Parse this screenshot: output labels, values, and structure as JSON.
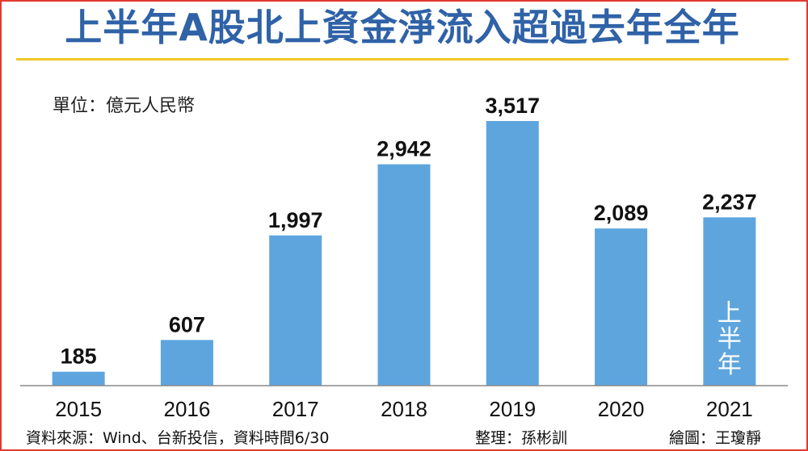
{
  "title": "上半年A股北上資金淨流入超過去年全年",
  "unit_label": "單位：億元人民幣",
  "footer": {
    "source": "資料來源：Wind、台新投信，資料時間6/30",
    "editor": "整理：孫彬訓",
    "artist": "繪圖：王瓊靜"
  },
  "colors": {
    "title": "#2f62a7",
    "bar": "#5ea5de",
    "rule": "#f0c82a",
    "border": "#e03a2e"
  },
  "chart_data": {
    "type": "bar",
    "categories": [
      "2015",
      "2016",
      "2017",
      "2018",
      "2019",
      "2020",
      "2021"
    ],
    "values": [
      185,
      607,
      1997,
      2942,
      3517,
      2089,
      2237
    ],
    "value_labels": [
      "185",
      "607",
      "1,997",
      "2,942",
      "3,517",
      "2,089",
      "2,237"
    ],
    "ylim": [
      0,
      3517
    ],
    "grid": false,
    "annotations": [
      {
        "category": "2021",
        "text": "上半年"
      }
    ]
  }
}
